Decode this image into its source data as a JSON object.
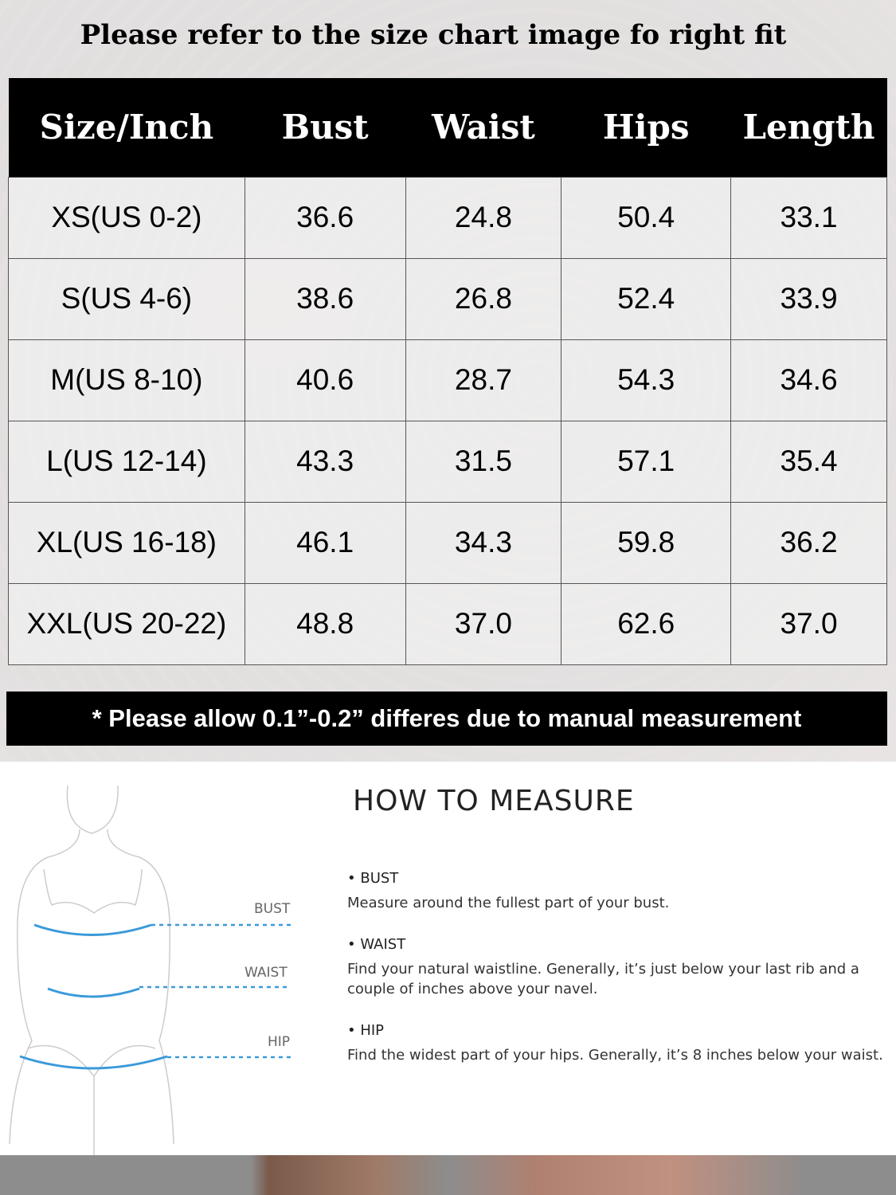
{
  "title": "Please refer to the size chart image fo right fit",
  "table": {
    "headers": [
      "Size/Inch",
      "Bust",
      "Waist",
      "Hips",
      "Length"
    ],
    "rows": [
      [
        "XS(US 0-2)",
        "36.6",
        "24.8",
        "50.4",
        "33.1"
      ],
      [
        "S(US 4-6)",
        "38.6",
        "26.8",
        "52.4",
        "33.9"
      ],
      [
        "M(US 8-10)",
        "40.6",
        "28.7",
        "54.3",
        "34.6"
      ],
      [
        "L(US 12-14)",
        "43.3",
        "31.5",
        "57.1",
        "35.4"
      ],
      [
        "XL(US 16-18)",
        "46.1",
        "34.3",
        "59.8",
        "36.2"
      ],
      [
        "XXL(US 20-22)",
        "48.8",
        "37.0",
        "62.6",
        "37.0"
      ]
    ]
  },
  "note": "* Please allow 0.1”-0.2” differes due to manual measurement",
  "how_to": {
    "title": "HOW TO MEASURE",
    "diagram_labels": [
      "BUST",
      "WAIST",
      "HIP"
    ],
    "items": [
      {
        "heading": "• BUST",
        "text": "Measure around the fullest part of your bust."
      },
      {
        "heading": "• WAIST",
        "text": "Find your natural waistline. Generally, it’s just below your last rib and a couple of inches above your navel."
      },
      {
        "heading": "• HIP",
        "text": "Find the widest part of your hips. Generally, it’s 8 inches below your waist."
      }
    ]
  },
  "colors": {
    "header_bg": "#000000",
    "measure_line": "#3a9ad9"
  }
}
